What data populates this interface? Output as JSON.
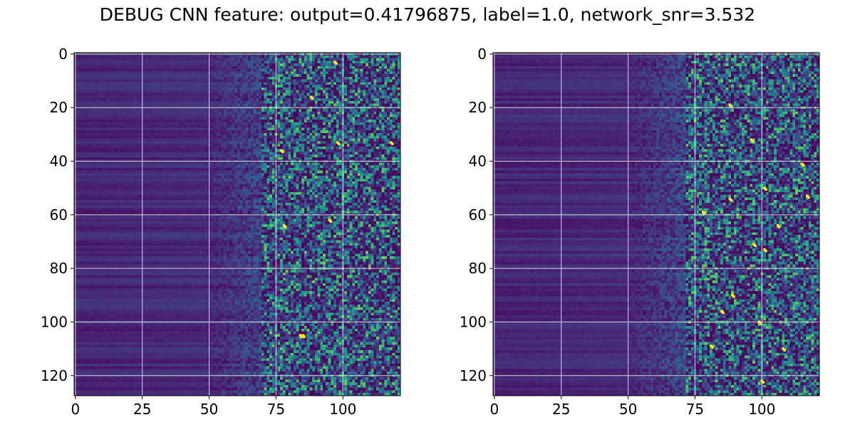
{
  "title": "DEBUG CNN feature: output=0.41796875, label=1.0, network_snr=3.532",
  "chart_data": [
    {
      "type": "heatmap",
      "title": "",
      "xlabel": "",
      "ylabel": "",
      "colormap": "viridis",
      "shape": [
        128,
        122
      ],
      "xlim": [
        -0.5,
        121.5
      ],
      "ylim": [
        127.5,
        -0.5
      ],
      "x_ticks": [
        0,
        25,
        50,
        75,
        100
      ],
      "y_ticks": [
        0,
        20,
        40,
        60,
        80,
        100,
        120
      ],
      "grid": true,
      "grid_color": "#d9d9d9",
      "low_variance_cols": [
        0,
        50
      ],
      "noisy_cols_start": 70,
      "bright_points": [
        [
          97,
          3
        ],
        [
          88,
          16
        ],
        [
          77,
          36
        ],
        [
          98,
          33
        ],
        [
          118,
          33
        ],
        [
          78,
          64
        ],
        [
          84,
          105
        ],
        [
          85,
          105
        ],
        [
          95,
          62
        ]
      ]
    },
    {
      "type": "heatmap",
      "title": "",
      "xlabel": "",
      "ylabel": "",
      "colormap": "viridis",
      "shape": [
        128,
        122
      ],
      "xlim": [
        -0.5,
        121.5
      ],
      "ylim": [
        127.5,
        -0.5
      ],
      "x_ticks": [
        0,
        25,
        50,
        75,
        100
      ],
      "y_ticks": [
        0,
        20,
        40,
        60,
        80,
        100,
        120
      ],
      "grid": true,
      "grid_color": "#d9d9d9",
      "low_variance_cols": [
        0,
        50
      ],
      "noisy_cols_start": 72,
      "bright_points": [
        [
          88,
          19
        ],
        [
          96,
          32
        ],
        [
          101,
          50
        ],
        [
          88,
          54
        ],
        [
          106,
          64
        ],
        [
          97,
          71
        ],
        [
          101,
          73
        ],
        [
          89,
          90
        ],
        [
          85,
          96
        ],
        [
          99,
          100
        ],
        [
          81,
          109
        ],
        [
          108,
          110
        ],
        [
          100,
          122
        ],
        [
          115,
          41
        ],
        [
          117,
          53
        ],
        [
          78,
          59
        ]
      ]
    }
  ],
  "colors": {
    "viridis_low": "#440154",
    "viridis_mid": "#21918c",
    "viridis_high": "#fde725"
  }
}
